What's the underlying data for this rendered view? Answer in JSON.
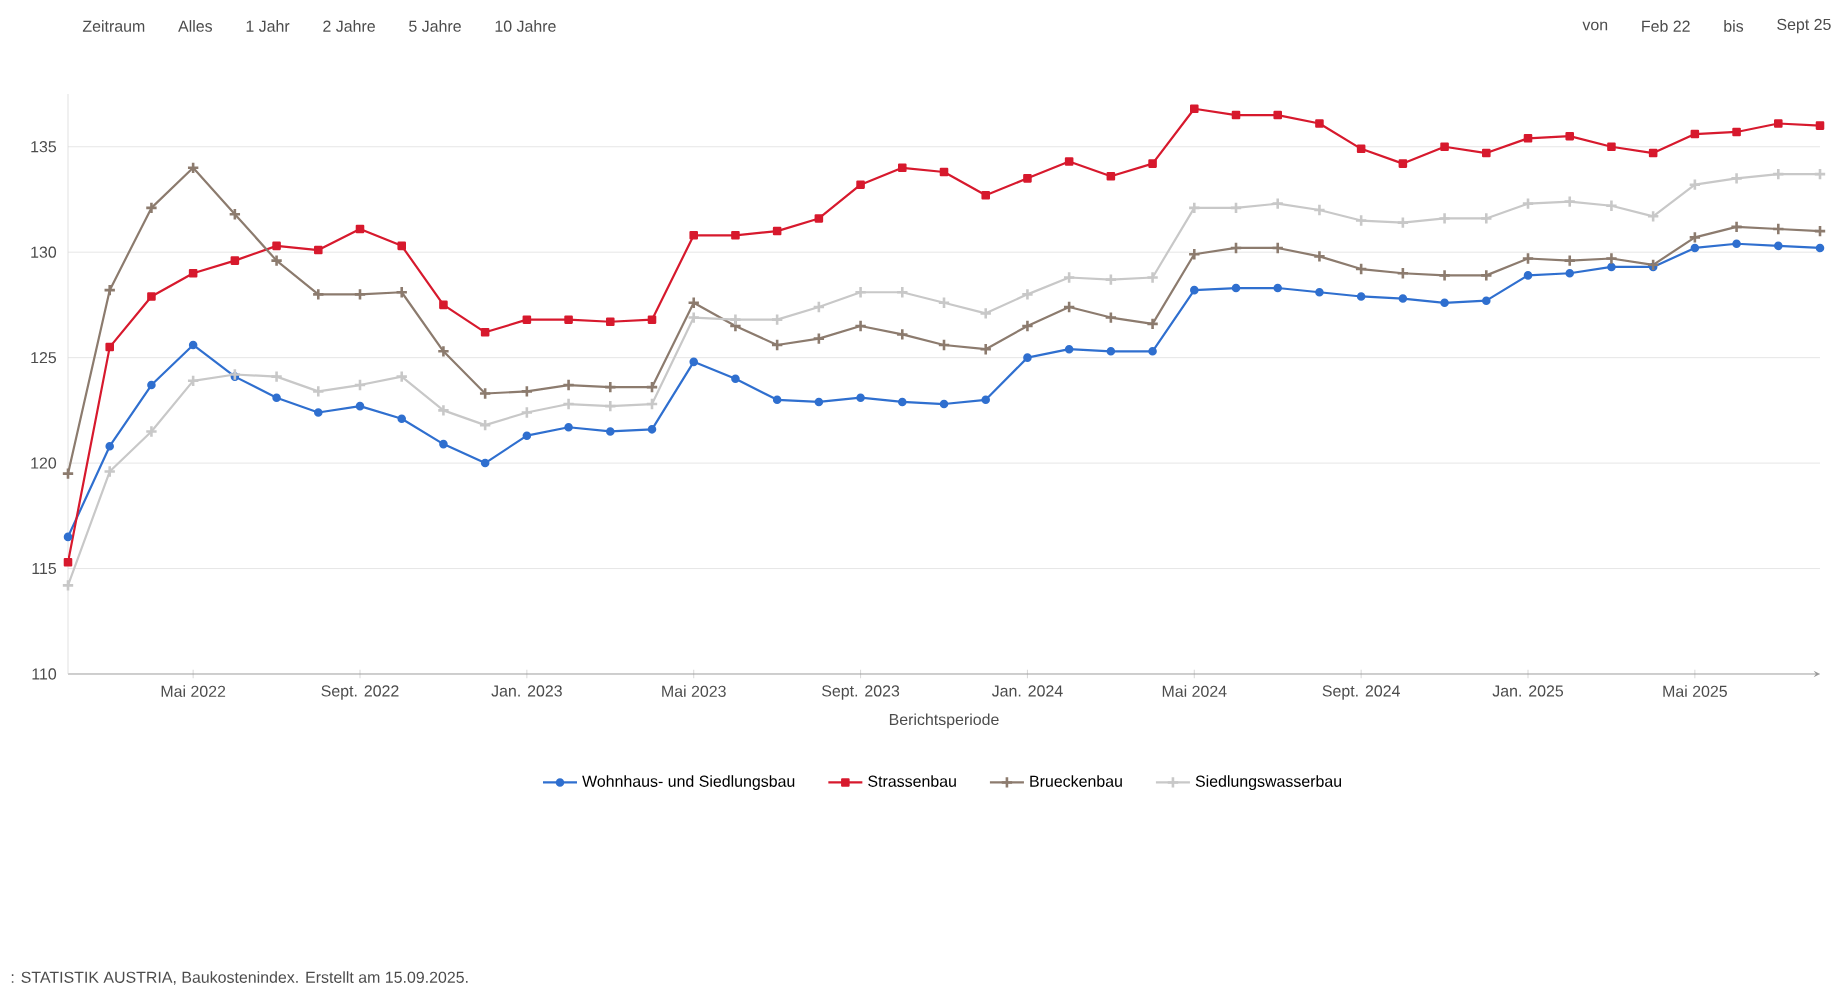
{
  "chart_data": {
    "type": "line",
    "xlabel": "Berichtsperiode",
    "x": [
      "2022-02",
      "2022-03",
      "2022-04",
      "2022-05",
      "2022-06",
      "2022-07",
      "2022-08",
      "2022-09",
      "2022-10",
      "2022-11",
      "2022-12",
      "2023-01",
      "2023-02",
      "2023-03",
      "2023-04",
      "2023-05",
      "2023-06",
      "2023-07",
      "2023-08",
      "2023-09",
      "2023-10",
      "2023-11",
      "2023-12",
      "2024-01",
      "2024-02",
      "2024-03",
      "2024-04",
      "2024-05",
      "2024-06",
      "2024-07",
      "2024-08",
      "2024-09",
      "2024-10",
      "2024-11",
      "2024-12",
      "2025-01",
      "2025-02",
      "2025-03",
      "2025-04",
      "2025-05",
      "2025-06",
      "2025-07",
      "2025-08"
    ],
    "series": [
      {
        "name": "Wohnhaus- und Siedlungsbau",
        "color": "#2f6fcf",
        "marker": "circle",
        "values": [
          116.5,
          120.8,
          123.7,
          125.6,
          124.1,
          123.1,
          122.4,
          122.7,
          122.1,
          120.9,
          120.0,
          121.3,
          121.7,
          121.5,
          121.6,
          124.8,
          124.0,
          123.0,
          122.9,
          123.1,
          122.9,
          122.8,
          123.0,
          125.0,
          125.4,
          125.3,
          125.3,
          128.2,
          128.3,
          128.3,
          128.1,
          127.9,
          127.8,
          127.6,
          127.7,
          128.9,
          129.0,
          129.3,
          129.3,
          130.2,
          130.4,
          130.3,
          130.2
        ]
      },
      {
        "name": "Strassenbau",
        "color": "#d7192d",
        "marker": "square",
        "values": [
          115.3,
          125.5,
          127.9,
          129.0,
          129.6,
          130.3,
          130.1,
          131.1,
          130.3,
          127.5,
          126.2,
          126.8,
          126.8,
          126.7,
          126.8,
          130.8,
          130.8,
          131.0,
          131.6,
          133.2,
          134.0,
          133.8,
          132.7,
          133.5,
          134.3,
          133.6,
          134.2,
          136.8,
          136.5,
          136.5,
          136.1,
          134.9,
          134.2,
          135.0,
          134.7,
          135.4,
          135.5,
          135.0,
          134.7,
          135.6,
          135.7,
          136.1,
          136.0
        ]
      },
      {
        "name": "Brueckenbau",
        "color": "#8c7b6e",
        "marker": "cross",
        "values": [
          119.5,
          128.2,
          132.1,
          134.0,
          131.8,
          129.6,
          128.0,
          128.0,
          128.1,
          125.3,
          123.3,
          123.4,
          123.7,
          123.6,
          123.6,
          127.6,
          126.5,
          125.6,
          125.9,
          126.5,
          126.1,
          125.6,
          125.4,
          126.5,
          127.4,
          126.9,
          126.6,
          129.9,
          130.2,
          130.2,
          129.8,
          129.2,
          129.0,
          128.9,
          128.9,
          129.7,
          129.6,
          129.7,
          129.4,
          130.7,
          131.2,
          131.1,
          131.0
        ]
      },
      {
        "name": "Siedlungswasserbau",
        "color": "#c8c8c8",
        "marker": "cross",
        "values": [
          114.2,
          119.6,
          121.5,
          123.9,
          124.2,
          124.1,
          123.4,
          123.7,
          124.1,
          122.5,
          121.8,
          122.4,
          122.8,
          122.7,
          122.8,
          126.9,
          126.8,
          126.8,
          127.4,
          128.1,
          128.1,
          127.6,
          127.1,
          128.0,
          128.8,
          128.7,
          128.8,
          132.1,
          132.1,
          132.3,
          132.0,
          131.5,
          131.4,
          131.6,
          131.6,
          132.3,
          132.4,
          132.2,
          131.7,
          133.2,
          133.5,
          133.7,
          133.7
        ]
      }
    ],
    "xlim": [
      "2022-02",
      "2025-08"
    ],
    "xticks": [
      {
        "value": "2022-05",
        "label": "Mai 2022"
      },
      {
        "value": "2022-09",
        "label": "Sept. 2022"
      },
      {
        "value": "2023-01",
        "label": "Jan. 2023"
      },
      {
        "value": "2023-05",
        "label": "Mai 2023"
      },
      {
        "value": "2023-09",
        "label": "Sept. 2023"
      },
      {
        "value": "2024-01",
        "label": "Jan. 2024"
      },
      {
        "value": "2024-05",
        "label": "Mai 2024"
      },
      {
        "value": "2024-09",
        "label": "Sept. 2024"
      },
      {
        "value": "2025-01",
        "label": "Jan. 2025"
      },
      {
        "value": "2025-05",
        "label": "Mai 2025"
      }
    ],
    "ylim": [
      110,
      137.5
    ],
    "yticks": [
      110,
      115,
      120,
      125,
      130,
      135
    ],
    "grid": "y",
    "legend": "bottom",
    "line_style": "solid",
    "annotations": [
      "Zeitraum",
      "Alles",
      "1 Jahr",
      "2 Jahre",
      "5 Jahre",
      "10 Jahre",
      "von",
      "Feb 22",
      "bis",
      "Sept 25",
      ": STATISTIK AUSTRIA, Baukostenindex. Erstellt am 15.09.2025."
    ]
  }
}
